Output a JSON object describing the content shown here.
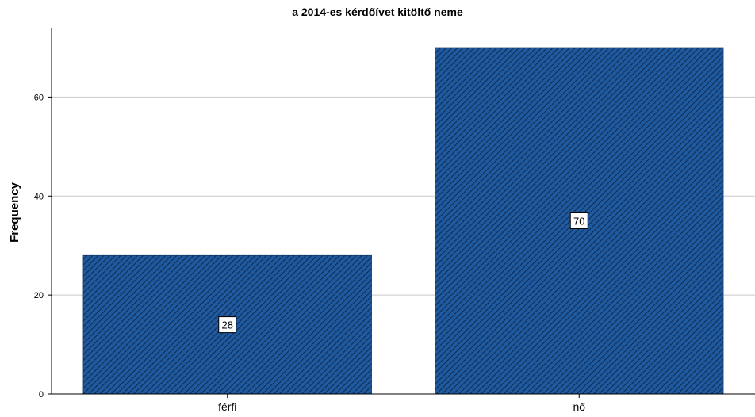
{
  "chart_data": {
    "type": "bar",
    "title": "a 2014-es kérdőívet kitöltő neme",
    "xlabel": "",
    "ylabel": "Frequency",
    "categories": [
      "férfi",
      "nő"
    ],
    "values": [
      28,
      70
    ],
    "data_labels": [
      "28",
      "70"
    ],
    "ylim": [
      0,
      74
    ],
    "yticks": [
      0,
      20,
      40,
      60
    ],
    "ytick_labels": [
      "0",
      "20",
      "40",
      "60"
    ],
    "grid": true,
    "legend": "none",
    "colors": {
      "bar_fill": "#1f5aa0",
      "bar_hatch": "#0f2d52",
      "grid": "#c8c8c8",
      "axis": "#000000"
    }
  }
}
